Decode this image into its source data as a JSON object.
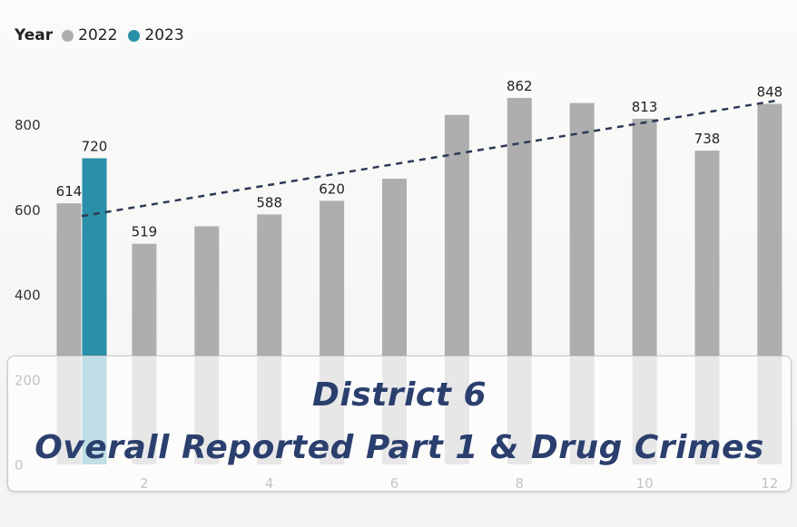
{
  "legend": {
    "title": "Year",
    "items": [
      {
        "label": "2022",
        "color": "#aeaeae"
      },
      {
        "label": "2023",
        "color": "#2a8fa8"
      }
    ]
  },
  "banner": {
    "line1": "District 6",
    "line2": "Overall Reported Part 1 & Drug Crimes"
  },
  "chart_data": {
    "type": "bar",
    "categories": [
      1,
      2,
      3,
      4,
      5,
      6,
      7,
      8,
      9,
      10,
      11,
      12
    ],
    "x_tick_labels": [
      "2",
      "4",
      "6",
      "8",
      "10",
      "12"
    ],
    "x_tick_values": [
      2,
      4,
      6,
      8,
      10,
      12
    ],
    "y_tick_values": [
      0,
      200,
      400,
      600,
      800
    ],
    "ylim": [
      0,
      960
    ],
    "series": [
      {
        "name": "2022",
        "color": "#aeaeae",
        "values": [
          614,
          519,
          560,
          588,
          620,
          672,
          822,
          862,
          850,
          813,
          738,
          848
        ]
      },
      {
        "name": "2023",
        "color": "#2a8fa8",
        "values": [
          720,
          null,
          null,
          null,
          null,
          null,
          null,
          null,
          null,
          null,
          null,
          null
        ]
      }
    ],
    "data_labels": [
      {
        "series": "2022",
        "category": 1,
        "text": "614"
      },
      {
        "series": "2023",
        "category": 1,
        "text": "720"
      },
      {
        "series": "2022",
        "category": 2,
        "text": "519"
      },
      {
        "series": "2022",
        "category": 4,
        "text": "588"
      },
      {
        "series": "2022",
        "category": 5,
        "text": "620"
      },
      {
        "series": "2022",
        "category": 8,
        "text": "862"
      },
      {
        "series": "2022",
        "category": 10,
        "text": "813"
      },
      {
        "series": "2022",
        "category": 11,
        "text": "738"
      },
      {
        "series": "2022",
        "category": 12,
        "text": "848"
      }
    ],
    "trendline": {
      "style": "dashed",
      "color": "#2b3a55",
      "from": [
        1,
        584
      ],
      "to": [
        12,
        855
      ]
    },
    "grid": false
  }
}
